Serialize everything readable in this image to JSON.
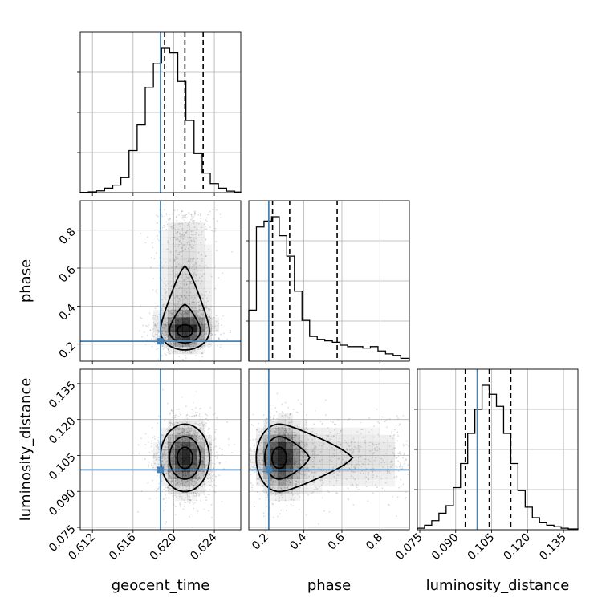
{
  "chart_data": {
    "type": "corner",
    "parameters": [
      "geocent_time",
      "phase",
      "luminosity_distance"
    ],
    "truths": {
      "geocent_time": 0.6187,
      "phase": 0.215,
      "luminosity_distance": 0.099
    },
    "quantiles": {
      "geocent_time": [
        0.6191,
        0.6211,
        0.6229
      ],
      "phase": [
        0.235,
        0.325,
        0.575
      ],
      "luminosity_distance": [
        0.094,
        0.104,
        0.113
      ]
    },
    "axes": {
      "geocent_time": {
        "range": [
          0.6108,
          0.6266
        ],
        "ticks": [
          0.612,
          0.616,
          0.62,
          0.624
        ],
        "tick_labels": [
          "0.612",
          "0.616",
          "0.620",
          "0.624"
        ]
      },
      "phase": {
        "range": [
          0.11,
          0.955
        ],
        "ticks": [
          0.2,
          0.4,
          0.6,
          0.8
        ],
        "tick_labels": [
          "0.2",
          "0.4",
          "0.6",
          "0.8"
        ]
      },
      "luminosity_distance": {
        "range": [
          0.074,
          0.141
        ],
        "ticks": [
          0.075,
          0.09,
          0.105,
          0.12,
          0.135
        ],
        "tick_labels": [
          "0.075",
          "0.090",
          "0.105",
          "0.120",
          "0.135"
        ]
      }
    },
    "histograms": {
      "geocent_time": {
        "bins": [
          0.6108,
          0.6116,
          0.6124,
          0.6132,
          0.614,
          0.6148,
          0.6156,
          0.6164,
          0.6172,
          0.618,
          0.6188,
          0.6196,
          0.6204,
          0.6212,
          0.622,
          0.6228,
          0.6236,
          0.6244,
          0.6252,
          0.626,
          0.6266
        ],
        "counts": [
          0.002,
          0.005,
          0.012,
          0.03,
          0.05,
          0.1,
          0.28,
          0.45,
          0.7,
          0.86,
          0.96,
          0.93,
          0.74,
          0.48,
          0.26,
          0.13,
          0.06,
          0.03,
          0.01,
          0.004
        ]
      },
      "phase": {
        "bins": [
          0.11,
          0.15,
          0.19,
          0.23,
          0.27,
          0.31,
          0.35,
          0.39,
          0.43,
          0.47,
          0.51,
          0.55,
          0.59,
          0.63,
          0.67,
          0.71,
          0.75,
          0.79,
          0.83,
          0.87,
          0.91,
          0.955
        ],
        "counts": [
          0.35,
          0.92,
          0.96,
          0.99,
          0.86,
          0.72,
          0.48,
          0.28,
          0.17,
          0.15,
          0.14,
          0.13,
          0.11,
          0.1,
          0.1,
          0.09,
          0.1,
          0.07,
          0.05,
          0.04,
          0.02
        ]
      },
      "luminosity_distance": {
        "bins": [
          0.074,
          0.077,
          0.08,
          0.083,
          0.086,
          0.089,
          0.092,
          0.095,
          0.098,
          0.101,
          0.104,
          0.107,
          0.11,
          0.113,
          0.116,
          0.119,
          0.122,
          0.125,
          0.128,
          0.131,
          0.134,
          0.137,
          0.141
        ],
        "counts": [
          0.01,
          0.03,
          0.06,
          0.11,
          0.16,
          0.28,
          0.44,
          0.64,
          0.8,
          0.96,
          0.9,
          0.82,
          0.64,
          0.44,
          0.26,
          0.15,
          0.08,
          0.05,
          0.03,
          0.02,
          0.01,
          0.005
        ]
      }
    },
    "pairs": [
      {
        "x": "geocent_time",
        "y": "phase",
        "x_center": 0.6211,
        "y_center": 0.27,
        "x_sigma": 0.0012,
        "y_sigma": 0.05,
        "y_tail": 0.85
      },
      {
        "x": "geocent_time",
        "y": "luminosity_distance",
        "x_center": 0.6211,
        "y_center": 0.104,
        "x_sigma": 0.0012,
        "y_sigma": 0.007
      },
      {
        "x": "phase",
        "y": "luminosity_distance",
        "x_center": 0.27,
        "y_center": 0.104,
        "x_sigma": 0.06,
        "y_sigma": 0.007,
        "x_tail": 0.89
      }
    ],
    "colors": {
      "truth": "#4682b4",
      "hist": "#000000",
      "grid": "#b0b0b0",
      "contour": "#000000",
      "density": "#000000"
    },
    "grid": true,
    "contour_levels": 3
  }
}
